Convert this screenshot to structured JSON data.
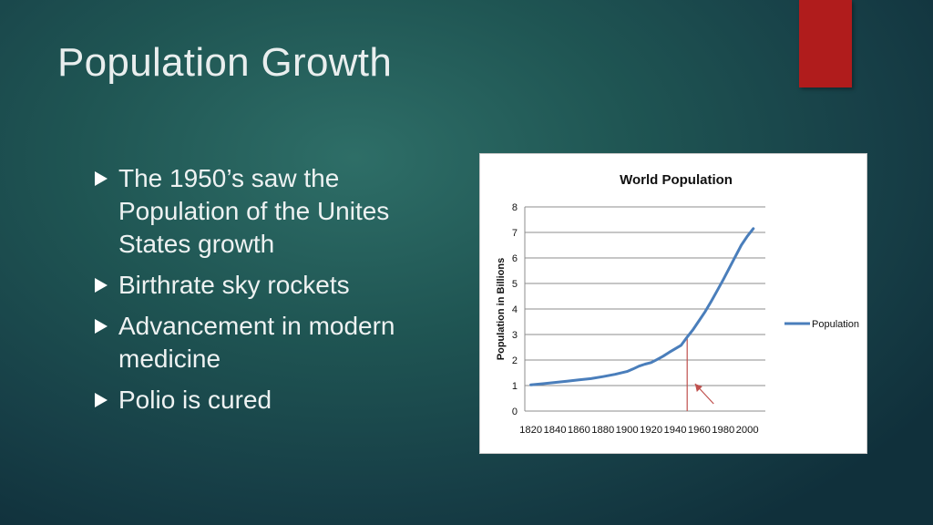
{
  "slide": {
    "title": "Population Growth",
    "accent_color": "#b01c1c"
  },
  "bullets": [
    {
      "text": "The 1950’s saw the Population of the Unites States growth"
    },
    {
      "text": "Birthrate sky rockets"
    },
    {
      "text": "Advancement in modern medicine"
    },
    {
      "text": "Polio is cured"
    }
  ],
  "chart_data": {
    "type": "line",
    "title": "World Population",
    "xlabel": "",
    "ylabel": "Population in Billions",
    "ylim": [
      0,
      8
    ],
    "yticks": [
      "0",
      "1",
      "2",
      "3",
      "4",
      "5",
      "6",
      "7",
      "8"
    ],
    "xticks": [
      "1820",
      "1840",
      "1860",
      "1880",
      "1900",
      "1920",
      "1940",
      "1960",
      "1980",
      "2000"
    ],
    "grid": "horizontal",
    "legend_position": "right",
    "series": [
      {
        "name": "Population",
        "color": "#4a7ebb",
        "x": [
          1820,
          1830,
          1840,
          1850,
          1860,
          1870,
          1880,
          1890,
          1900,
          1905,
          1910,
          1915,
          1920,
          1925,
          1930,
          1935,
          1940,
          1945,
          1950,
          1955,
          1960,
          1965,
          1970,
          1975,
          1980,
          1985,
          1990,
          1995,
          2000,
          2005
        ],
        "y": [
          1.03,
          1.07,
          1.12,
          1.17,
          1.22,
          1.27,
          1.35,
          1.44,
          1.55,
          1.65,
          1.76,
          1.84,
          1.9,
          2.02,
          2.15,
          2.3,
          2.44,
          2.58,
          2.9,
          3.2,
          3.55,
          3.9,
          4.3,
          4.72,
          5.15,
          5.6,
          6.05,
          6.5,
          6.85,
          7.15
        ]
      }
    ],
    "annotation": {
      "x": 1950,
      "color": "#c0504d"
    }
  }
}
